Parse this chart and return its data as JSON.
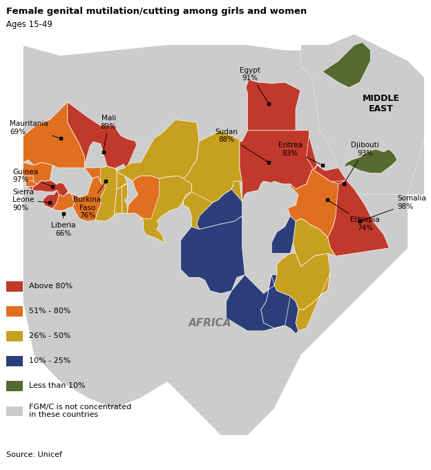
{
  "title": "Female genital mutilation/cutting among girls and women",
  "subtitle": "Ages 15-49",
  "source": "Source: Unicef",
  "colors": {
    "above_80": "#c0392b",
    "51_80": "#e07020",
    "26_50": "#c8a020",
    "10_25": "#2c3e7a",
    "less_10": "#556b2f",
    "not_concentrated": "#cccccc",
    "background": "#ffffff"
  },
  "legend": [
    {
      "label": "Above 80%",
      "color": "#c0392b"
    },
    {
      "label": "51% - 80%",
      "color": "#e07020"
    },
    {
      "label": "26% - 50%",
      "color": "#c8a020"
    },
    {
      "label": "10% - 25%",
      "color": "#2c3e7a"
    },
    {
      "label": "Less than 10%",
      "color": "#556b2f"
    },
    {
      "label": "FGM/C is not concentrated\nin these countries",
      "color": "#cccccc"
    }
  ],
  "figsize": [
    6.24,
    6.8
  ],
  "dpi": 100
}
